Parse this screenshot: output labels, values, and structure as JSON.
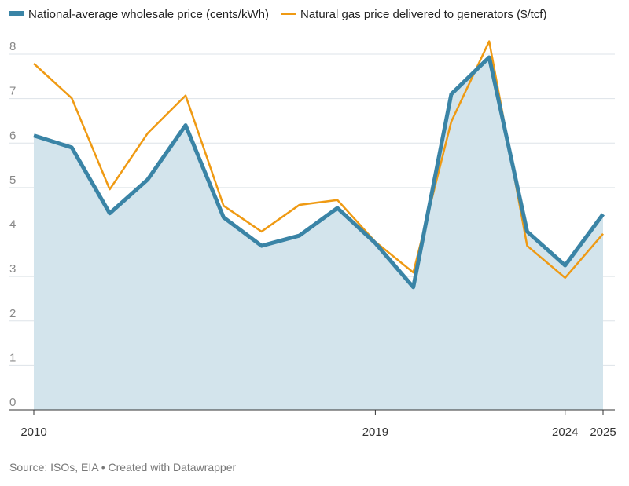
{
  "chart_data": {
    "type": "line",
    "x": [
      2010,
      2011,
      2012,
      2013,
      2014,
      2015,
      2016,
      2017,
      2018,
      2019,
      2020,
      2021,
      2022,
      2023,
      2024,
      2025
    ],
    "series": [
      {
        "name": "National-average wholesale price (cents/kWh)",
        "color": "#3a84a6",
        "area_color": "#d3e4ec",
        "values": [
          6.17,
          5.9,
          4.42,
          5.18,
          6.4,
          4.33,
          3.69,
          3.92,
          4.54,
          3.75,
          2.76,
          7.1,
          7.93,
          4.01,
          3.25,
          4.4
        ]
      },
      {
        "name": "Natural gas price delivered to generators ($/tcf)",
        "color": "#ef9a13",
        "values": [
          7.79,
          7.01,
          4.96,
          6.22,
          7.07,
          4.59,
          4.01,
          4.61,
          4.72,
          3.78,
          3.09,
          6.48,
          8.29,
          3.69,
          2.97,
          3.96
        ]
      }
    ],
    "xlim": [
      2010,
      2025
    ],
    "xticks": [
      2010,
      2019,
      2024,
      2025
    ],
    "ylim": [
      0,
      8
    ],
    "yticks": [
      0,
      1,
      2,
      3,
      4,
      5,
      6,
      7,
      8
    ],
    "grid": true,
    "source": "Source: ISOs, EIA • Created with Datawrapper"
  }
}
